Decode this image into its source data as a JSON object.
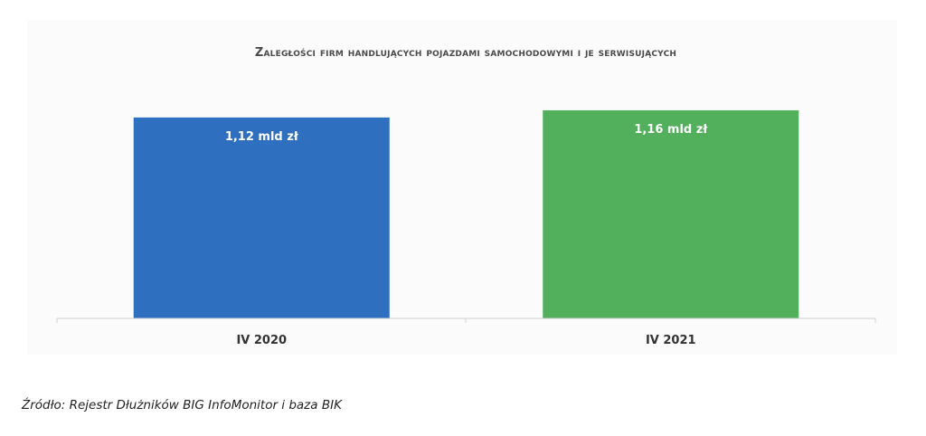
{
  "chart_data": {
    "type": "bar",
    "title": "Zaległości firm handlujących pojazdami samochodowymi i je serwisujących",
    "categories": [
      "IV 2020",
      "IV 2021"
    ],
    "values": [
      1.12,
      1.16
    ],
    "data_labels": [
      "1,12 mld zł",
      "1,16 mld zł"
    ],
    "colors": [
      "#2e70bf",
      "#52b05c"
    ],
    "xlabel": "",
    "ylabel": "",
    "ylim": [
      0,
      1.2
    ],
    "grid": false,
    "legend": "none"
  },
  "source": "Źródło: Rejestr Dłużników BIG InfoMonitor i baza BIK"
}
